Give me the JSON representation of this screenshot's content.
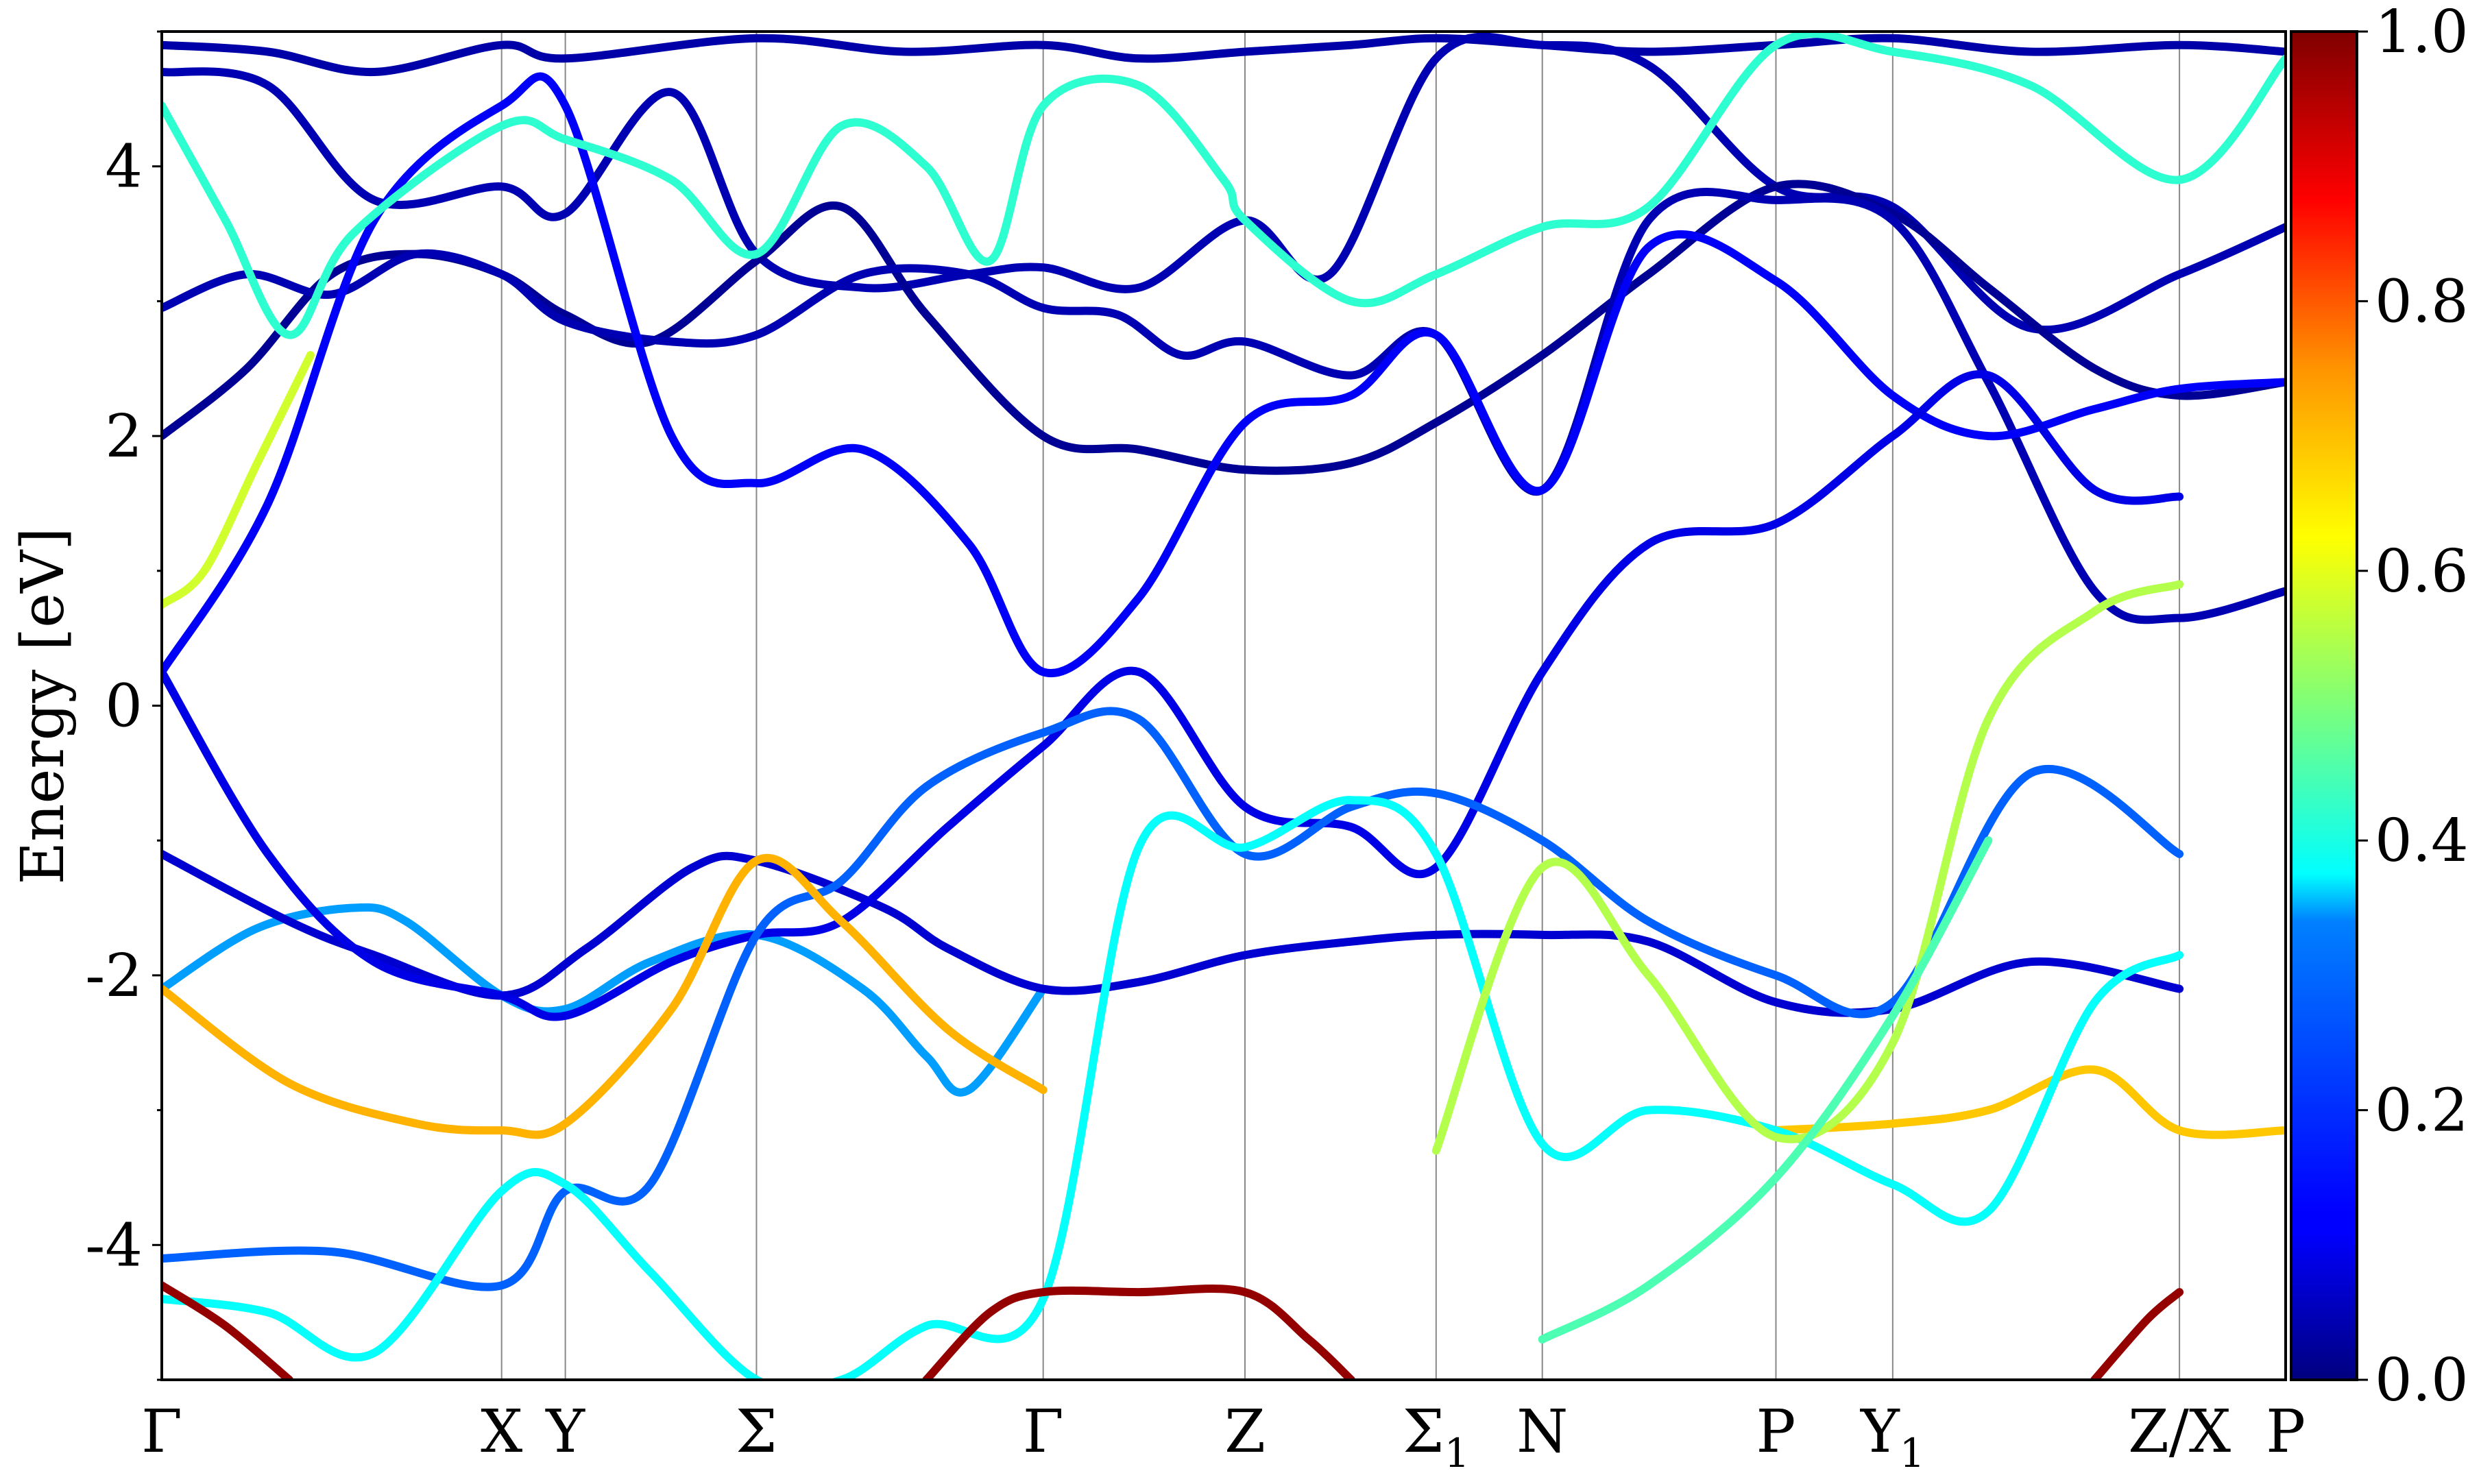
{
  "chart_data": {
    "type": "line",
    "title": "",
    "xlabel": "",
    "ylabel": "Energy [eV]",
    "ylim": [
      -5,
      5
    ],
    "yticks": [
      {
        "value": 4,
        "label": "4"
      },
      {
        "value": 2,
        "label": "2"
      },
      {
        "value": 0,
        "label": "0"
      },
      {
        "value": -2,
        "label": "-2"
      },
      {
        "value": -4,
        "label": "-4"
      }
    ],
    "xlim": [
      0,
      1
    ],
    "kpoints": [
      {
        "label": "Γ",
        "sub": "",
        "x": 0.0
      },
      {
        "label": "X",
        "sub": "",
        "x": 0.16
      },
      {
        "label": "Y",
        "sub": "",
        "x": 0.19
      },
      {
        "label": "Σ",
        "sub": "",
        "x": 0.28
      },
      {
        "label": "Γ",
        "sub": "",
        "x": 0.415
      },
      {
        "label": "Z",
        "sub": "",
        "x": 0.51
      },
      {
        "label": "Σ",
        "sub": "1",
        "x": 0.6
      },
      {
        "label": "N",
        "sub": "",
        "x": 0.65
      },
      {
        "label": "P",
        "sub": "",
        "x": 0.76
      },
      {
        "label": "Y",
        "sub": "1",
        "x": 0.815
      },
      {
        "label": "Z/X",
        "sub": "",
        "x": 0.95
      },
      {
        "label": "P",
        "sub": "",
        "x": 1.0
      }
    ],
    "colorbar": {
      "range": [
        0.0,
        1.0
      ],
      "ticks": [
        "0.0",
        "0.2",
        "0.4",
        "0.6",
        "0.8",
        "1.0"
      ],
      "colormap": "jet"
    },
    "series": [
      {
        "weight": 0.04,
        "x": [
          0.0,
          0.05,
          0.1,
          0.16,
          0.19,
          0.28,
          0.35,
          0.415,
          0.46,
          0.51,
          0.56,
          0.6,
          0.65,
          0.7,
          0.76,
          0.815,
          0.88,
          0.95,
          1.0
        ],
        "y": [
          4.9,
          4.85,
          4.7,
          4.9,
          4.8,
          4.95,
          4.85,
          4.9,
          4.8,
          4.85,
          4.9,
          4.95,
          4.9,
          4.85,
          4.9,
          4.95,
          4.85,
          4.9,
          4.85
        ]
      },
      {
        "weight": 0.05,
        "x": [
          0.0,
          0.05,
          0.1,
          0.16,
          0.19,
          0.24,
          0.28,
          0.33,
          0.38,
          0.415,
          0.46,
          0.51,
          0.55,
          0.6,
          0.65,
          0.7,
          0.76,
          0.815,
          0.88,
          0.95,
          1.0
        ],
        "y": [
          4.7,
          4.6,
          3.75,
          3.85,
          3.65,
          4.55,
          3.35,
          3.1,
          3.2,
          3.25,
          3.1,
          3.6,
          3.2,
          4.8,
          4.9,
          4.75,
          3.85,
          3.7,
          2.8,
          3.2,
          3.55
        ]
      },
      {
        "weight": 0.02,
        "x": [
          0.0,
          0.04,
          0.08,
          0.12,
          0.16,
          0.19,
          0.23,
          0.28,
          0.32,
          0.36,
          0.415,
          0.46,
          0.51,
          0.56,
          0.6,
          0.65,
          0.7,
          0.76,
          0.815,
          0.86,
          0.91,
          0.95,
          1.0
        ],
        "y": [
          2.0,
          2.5,
          3.2,
          3.35,
          3.2,
          2.9,
          2.7,
          3.3,
          3.7,
          2.9,
          2.0,
          1.9,
          1.75,
          1.8,
          2.1,
          2.6,
          3.2,
          3.85,
          3.65,
          3.1,
          2.5,
          2.3,
          2.4
        ]
      },
      {
        "weight": 0.05,
        "x": [
          0.0,
          0.04,
          0.08,
          0.12,
          0.16,
          0.19,
          0.24,
          0.28,
          0.33,
          0.38,
          0.415,
          0.45,
          0.48,
          0.51,
          0.56,
          0.6,
          0.65,
          0.7,
          0.76,
          0.815,
          0.86,
          0.91,
          0.95,
          1.0
        ],
        "y": [
          2.95,
          3.2,
          3.05,
          3.35,
          3.2,
          2.85,
          2.7,
          2.75,
          3.2,
          3.2,
          2.95,
          2.9,
          2.6,
          2.7,
          2.45,
          2.75,
          1.6,
          3.6,
          3.75,
          3.6,
          2.4,
          0.85,
          0.65,
          0.85
        ]
      },
      {
        "weight": 0.12,
        "x": [
          0.0,
          0.05,
          0.1,
          0.16,
          0.19,
          0.24,
          0.28,
          0.33,
          0.38,
          0.415,
          0.46,
          0.51,
          0.56,
          0.6,
          0.65,
          0.7,
          0.76,
          0.815,
          0.86,
          0.91,
          0.95,
          1.0
        ],
        "y": [
          0.25,
          1.5,
          3.6,
          4.45,
          4.45,
          2.0,
          1.65,
          1.9,
          1.2,
          0.25,
          0.8,
          2.1,
          2.3,
          2.75,
          1.6,
          3.4,
          3.15,
          2.3,
          2.0,
          2.2,
          2.35,
          2.4
        ]
      },
      {
        "weight": 0.42,
        "x": [
          0.0,
          0.03,
          0.06,
          0.09,
          0.16,
          0.19,
          0.24,
          0.28,
          0.32,
          0.36,
          0.39,
          0.415,
          0.46,
          0.5,
          0.51,
          0.56,
          0.6,
          0.65,
          0.7,
          0.76,
          0.815,
          0.88,
          0.95,
          1.0
        ],
        "y": [
          4.45,
          3.6,
          2.75,
          3.5,
          4.3,
          4.2,
          3.9,
          3.35,
          4.3,
          4.0,
          3.3,
          4.45,
          4.6,
          3.9,
          3.6,
          3.0,
          3.2,
          3.55,
          3.7,
          4.9,
          4.85,
          4.6,
          3.9,
          4.8
        ]
      },
      {
        "weight": 0.58,
        "x": [
          0.0,
          0.02,
          0.045,
          0.07
        ],
        "y": [
          0.75,
          1.0,
          1.8,
          2.6
        ]
      },
      {
        "weight": 0.28,
        "x": [
          0.0,
          0.045,
          0.09,
          0.115,
          0.16,
          0.19,
          0.23,
          0.28,
          0.33,
          0.36,
          0.38,
          0.415
        ],
        "y": [
          -2.1,
          -1.65,
          -1.5,
          -1.6,
          -2.15,
          -2.25,
          -1.9,
          -1.7,
          -2.1,
          -2.6,
          -2.85,
          -2.1
        ]
      },
      {
        "weight": 0.08,
        "x": [
          0.0,
          0.06,
          0.1,
          0.16,
          0.2,
          0.25,
          0.28,
          0.34,
          0.37,
          0.415,
          0.46,
          0.51,
          0.56,
          0.6,
          0.65,
          0.7,
          0.76,
          0.815,
          0.88,
          0.95
        ],
        "y": [
          -1.1,
          -1.6,
          -1.85,
          -2.15,
          -1.8,
          -1.2,
          -1.15,
          -1.5,
          -1.8,
          -2.1,
          -2.05,
          -1.85,
          -1.75,
          -1.7,
          -1.7,
          -1.75,
          -2.2,
          -2.25,
          -1.9,
          -2.1
        ]
      },
      {
        "weight": 0.1,
        "x": [
          0.0,
          0.05,
          0.1,
          0.16,
          0.19,
          0.24,
          0.28,
          0.32,
          0.37,
          0.415,
          0.46,
          0.51,
          0.56,
          0.6,
          0.65,
          0.7,
          0.76,
          0.815,
          0.86,
          0.91,
          0.95
        ],
        "y": [
          0.25,
          -1.1,
          -1.9,
          -2.15,
          -2.3,
          -1.9,
          -1.7,
          -1.6,
          -0.9,
          -0.3,
          0.25,
          -0.75,
          -0.9,
          -1.2,
          0.25,
          1.2,
          1.35,
          2.0,
          2.45,
          1.6,
          1.55
        ]
      },
      {
        "weight": 0.22,
        "x": [
          0.0,
          0.08,
          0.16,
          0.19,
          0.23,
          0.28,
          0.32,
          0.36,
          0.415,
          0.46,
          0.51,
          0.56,
          0.6,
          0.65,
          0.7,
          0.76,
          0.815,
          0.88,
          0.95
        ],
        "y": [
          -4.1,
          -4.05,
          -4.3,
          -3.6,
          -3.55,
          -1.7,
          -1.3,
          -0.6,
          -0.2,
          -0.1,
          -1.1,
          -0.75,
          -0.65,
          -1.0,
          -1.6,
          -2.0,
          -2.2,
          -0.5,
          -1.1
        ]
      },
      {
        "weight": 0.7,
        "x": [
          0.0,
          0.06,
          0.12,
          0.16,
          0.19,
          0.24,
          0.28,
          0.32,
          0.37,
          0.415
        ],
        "y": [
          -2.1,
          -2.8,
          -3.1,
          -3.15,
          -3.1,
          -2.25,
          -1.15,
          -1.6,
          -2.4,
          -2.85
        ]
      },
      {
        "weight": 0.68,
        "x": [
          0.76,
          0.815,
          0.86,
          0.91,
          0.95,
          1.0
        ],
        "y": [
          -3.15,
          -3.1,
          -3.0,
          -2.7,
          -3.15,
          -3.15
        ]
      },
      {
        "weight": 0.38,
        "x": [
          0.0,
          0.05,
          0.1,
          0.16,
          0.19,
          0.23,
          0.28,
          0.32,
          0.36,
          0.415,
          0.46,
          0.51,
          0.56,
          0.6,
          0.65,
          0.7,
          0.76,
          0.815,
          0.86,
          0.91,
          0.95
        ],
        "y": [
          -4.4,
          -4.5,
          -4.8,
          -3.6,
          -3.55,
          -4.2,
          -5.0,
          -5.0,
          -4.6,
          -4.4,
          -1.05,
          -1.05,
          -0.7,
          -1.1,
          -3.25,
          -3.0,
          -3.15,
          -3.55,
          -3.75,
          -2.2,
          -1.85
        ]
      },
      {
        "weight": 0.55,
        "x": [
          0.6,
          0.65,
          0.7,
          0.76,
          0.815,
          0.86,
          0.91,
          0.95
        ],
        "y": [
          -3.3,
          -1.2,
          -2.0,
          -3.2,
          -2.5,
          -0.1,
          0.7,
          0.9
        ]
      },
      {
        "weight": 0.98,
        "x": [
          0.0,
          0.03,
          0.06
        ],
        "y": [
          -4.3,
          -4.6,
          -5.0
        ]
      },
      {
        "weight": 0.98,
        "x": [
          0.36,
          0.39,
          0.415,
          0.46,
          0.51,
          0.54,
          0.56
        ],
        "y": [
          -5.0,
          -4.5,
          -4.35,
          -4.35,
          -4.35,
          -4.7,
          -5.0
        ]
      },
      {
        "weight": 0.98,
        "x": [
          0.91,
          0.935,
          0.95
        ],
        "y": [
          -5.0,
          -4.55,
          -4.35
        ]
      },
      {
        "weight": 0.45,
        "x": [
          0.65,
          0.7,
          0.76,
          0.815,
          0.86
        ],
        "y": [
          -4.7,
          -4.3,
          -3.5,
          -2.3,
          -1.0
        ]
      }
    ]
  }
}
